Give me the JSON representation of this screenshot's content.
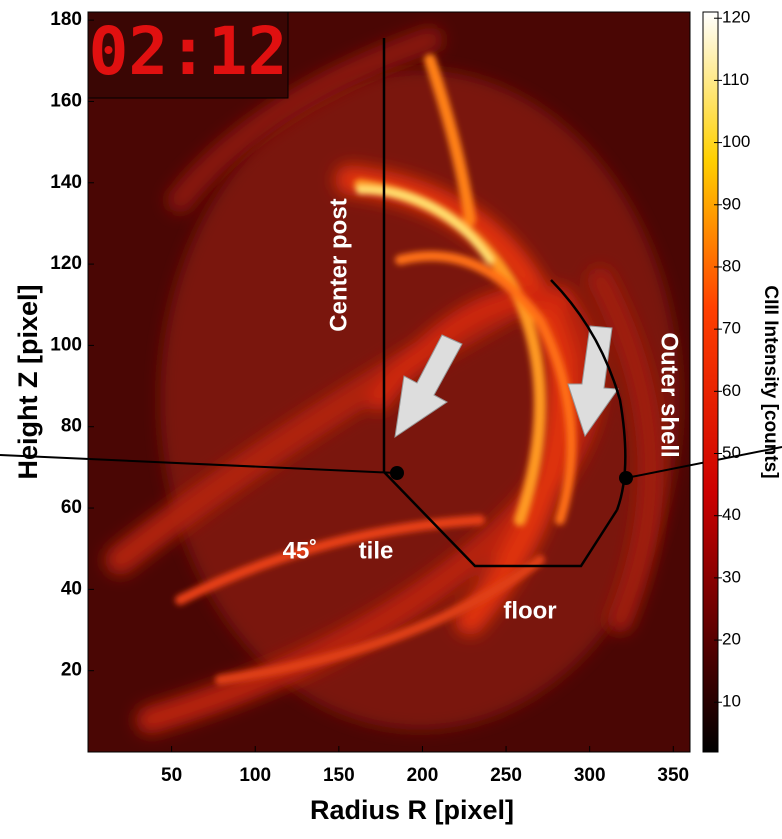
{
  "chart_data": {
    "type": "image",
    "xlabel": "Radius R [pixel]",
    "ylabel": "Height Z [pixel]",
    "xlim": [
      0,
      360
    ],
    "ylim": [
      0,
      182
    ],
    "xticks": [
      50,
      100,
      150,
      200,
      250,
      300,
      350
    ],
    "yticks": [
      20,
      40,
      60,
      80,
      100,
      120,
      140,
      160,
      180
    ],
    "colorbar": {
      "label": "CIII Intensity [counts]",
      "clim": [
        2,
        121
      ],
      "ticks": [
        10,
        20,
        30,
        40,
        50,
        60,
        70,
        80,
        90,
        100,
        110,
        120
      ],
      "colormap": "hot"
    },
    "timestamp": "02:12",
    "annotations": [
      "Center post",
      "45˚",
      "tile",
      "floor",
      "Outer shell"
    ]
  }
}
